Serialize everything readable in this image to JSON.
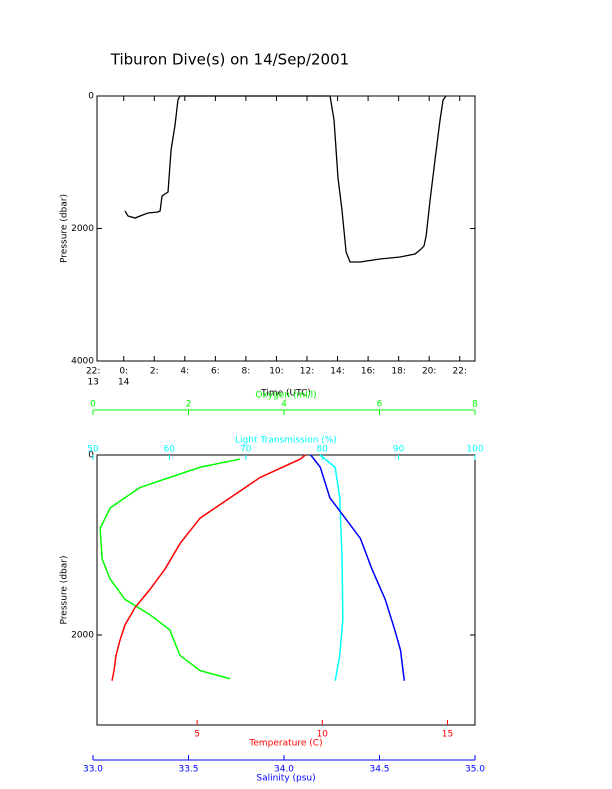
{
  "chart_data": [
    {
      "type": "line",
      "title": "Tiburon Dive(s) on 14/Sep/2001",
      "x_label": "Time (UTC)",
      "y_label": "Pressure (dbar)",
      "xlim": [
        -1.75,
        23
      ],
      "ylim": [
        4000,
        0
      ],
      "xticks": [
        {
          "value": -2,
          "label": "22:"
        },
        {
          "value": 0,
          "label": "0:"
        },
        {
          "value": 2,
          "label": "2:"
        },
        {
          "value": 4,
          "label": "4:"
        },
        {
          "value": 6,
          "label": "6:"
        },
        {
          "value": 8,
          "label": "8:"
        },
        {
          "value": 10,
          "label": "10:"
        },
        {
          "value": 12,
          "label": "12:"
        },
        {
          "value": 14,
          "label": "14:"
        },
        {
          "value": 16,
          "label": "16:"
        },
        {
          "value": 18,
          "label": "18:"
        },
        {
          "value": 20,
          "label": "20:"
        },
        {
          "value": 22,
          "label": "22:"
        }
      ],
      "x_date_labels": [
        {
          "value": -2,
          "label": "13"
        },
        {
          "value": 0,
          "label": "14"
        }
      ],
      "yticks": [
        0,
        2000,
        4000
      ],
      "series": [
        {
          "color": "#000000",
          "x": [
            0.08,
            0.28,
            0.74,
            1.07,
            1.59,
            2.24,
            2.38,
            2.51,
            2.7,
            2.9,
            3.1,
            3.36,
            3.55,
            3.68,
            13.51,
            13.77,
            14.03,
            14.29,
            14.56,
            14.82,
            15.47,
            16.78,
            18.09,
            19.07,
            19.4,
            19.66,
            19.8,
            20.06,
            20.38,
            20.71,
            20.91,
            21.1
          ],
          "values": [
            1736,
            1811,
            1842,
            1811,
            1766,
            1751,
            1736,
            1509,
            1479,
            1449,
            815,
            438,
            60,
            0,
            0,
            362,
            1238,
            1721,
            2355,
            2506,
            2506,
            2460,
            2430,
            2385,
            2325,
            2264,
            2113,
            1570,
            966,
            362,
            60,
            0
          ]
        }
      ]
    },
    {
      "type": "profile",
      "y_label": "Pressure (dbar)",
      "ylim": [
        3000,
        0
      ],
      "yticks": [
        0,
        2000
      ],
      "axes": [
        {
          "label": "Oxygen (ml/l)",
          "color": "#00ff00",
          "position": "top",
          "lim": [
            0,
            8
          ],
          "ticks": [
            0,
            2,
            4,
            6,
            8
          ]
        },
        {
          "label": "Light Transmission (%)",
          "color": "#00ffff",
          "position": "top",
          "lim": [
            50,
            100
          ],
          "ticks": [
            50,
            60,
            70,
            80,
            90,
            100
          ]
        },
        {
          "label": "Temperature (C)",
          "color": "#ff0000",
          "position": "bottom",
          "lim": [
            1,
            16.1
          ],
          "ticks": [
            5,
            10,
            15
          ]
        },
        {
          "label": "Salinity (psu)",
          "color": "#0000ff",
          "position": "bottom",
          "lim": [
            33,
            35
          ],
          "ticks": [
            {
              "value": 33,
              "label": "33.0"
            },
            {
              "value": 33.5,
              "label": "33.5"
            },
            {
              "value": 34,
              "label": "34.0"
            },
            {
              "value": 34.5,
              "label": "34.5"
            },
            {
              "value": 35,
              "label": "35.0"
            }
          ]
        }
      ],
      "series": [
        {
          "axis": 0,
          "color": "#00ff00",
          "x": [
            3.08,
            2.24,
            0.98,
            0.36,
            0.15,
            0.19,
            0.36,
            0.67,
            1.19,
            1.61,
            1.82,
            2.24,
            2.87
          ],
          "values": [
            45,
            136,
            362,
            588,
            814,
            1153,
            1379,
            1605,
            1774,
            1944,
            2226,
            2395,
            2486
          ]
        },
        {
          "axis": 1,
          "color": "#00ffff",
          "x": [
            79.7,
            81.7,
            82.3,
            82.6,
            82.7,
            82.3,
            81.7
          ],
          "values": [
            0,
            136,
            475,
            1153,
            1831,
            2226,
            2508
          ]
        },
        {
          "axis": 2,
          "color": "#ff0000",
          "x": [
            9.32,
            9.12,
            7.52,
            6.32,
            5.12,
            4.32,
            3.72,
            3.12,
            2.52,
            2.12,
            1.92,
            1.76,
            1.68,
            1.6
          ],
          "values": [
            0,
            45,
            249,
            475,
            701,
            983,
            1266,
            1492,
            1695,
            1887,
            2056,
            2226,
            2395,
            2508
          ]
        },
        {
          "axis": 3,
          "color": "#0000ff",
          "x": [
            34.14,
            34.19,
            34.24,
            34.32,
            34.4,
            34.46,
            34.53,
            34.58,
            34.61,
            34.62,
            34.63
          ],
          "values": [
            0,
            136,
            475,
            701,
            927,
            1266,
            1605,
            1944,
            2169,
            2339,
            2508
          ]
        }
      ]
    }
  ]
}
